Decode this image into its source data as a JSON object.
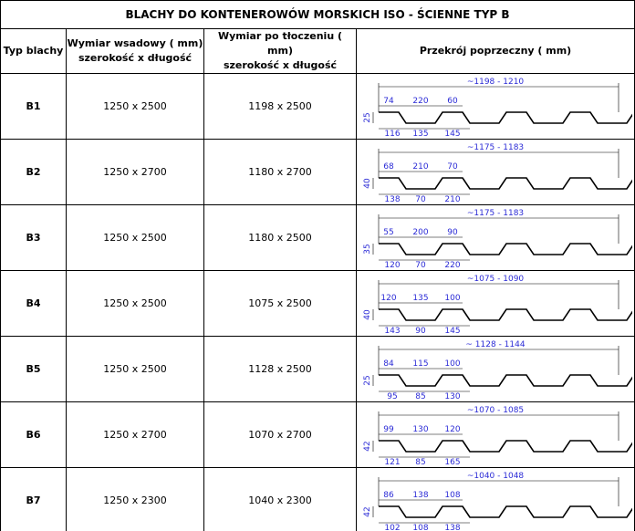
{
  "title": "BLACHY DO KONTENEROWÓW MORSKICH ISO -  ŚCIENNE TYP B",
  "header": [
    [
      "Typ blachy"
    ],
    [
      "Wymiar wsadowy ( mm)",
      "szerokość x długość"
    ],
    [
      "Wymiar po tłoczeniu ( mm)",
      "szerokość x długość"
    ],
    [
      "Przekrój poprzeczny ( mm)"
    ]
  ],
  "rows": [
    {
      "type": "B1",
      "input": "1250 x 2500",
      "output": "1198 x 2500",
      "profile": {
        "total": "~1198  -  1210",
        "height": "25",
        "top": [
          "74",
          "220",
          "60"
        ],
        "bottom": [
          "116",
          "135",
          "145"
        ]
      }
    },
    {
      "type": "B2",
      "input": "1250 x 2700",
      "output": "1180 x 2700",
      "profile": {
        "total": "~1175  -  1183",
        "height": "40",
        "top": [
          "68",
          "210",
          "70"
        ],
        "bottom": [
          "138",
          "70",
          "210"
        ]
      }
    },
    {
      "type": "B3",
      "input": "1250 x 2500",
      "output": "1180 x 2500",
      "profile": {
        "total": "~1175  -  1183",
        "height": "35",
        "top": [
          "55",
          "200",
          "90"
        ],
        "bottom": [
          "120",
          "70",
          "220"
        ]
      }
    },
    {
      "type": "B4",
      "input": "1250 x 2500",
      "output": "1075 x 2500",
      "profile": {
        "total": "~1075  -  1090",
        "height": "40",
        "top": [
          "120",
          "135",
          "100"
        ],
        "bottom": [
          "143",
          "90",
          "145"
        ]
      }
    },
    {
      "type": "B5",
      "input": "1250 x 2500",
      "output": "1128 x 2500",
      "profile": {
        "total": "~ 1128  -  1144",
        "height": "25",
        "top": [
          "84",
          "115",
          "100"
        ],
        "bottom": [
          "95",
          "85",
          "130"
        ]
      }
    },
    {
      "type": "B6",
      "input": "1250 x 2700",
      "output": "1070 x 2700",
      "profile": {
        "total": "~1070  -  1085",
        "height": "42",
        "top": [
          "99",
          "130",
          "120"
        ],
        "bottom": [
          "121",
          "85",
          "165"
        ]
      }
    },
    {
      "type": "B7",
      "input": "1250 x 2300",
      "output": "1040 x 2300",
      "profile": {
        "total": "~1040  -  1048",
        "height": "42",
        "top": [
          "86",
          "138",
          "108"
        ],
        "bottom": [
          "102",
          "108",
          "138"
        ]
      }
    }
  ]
}
